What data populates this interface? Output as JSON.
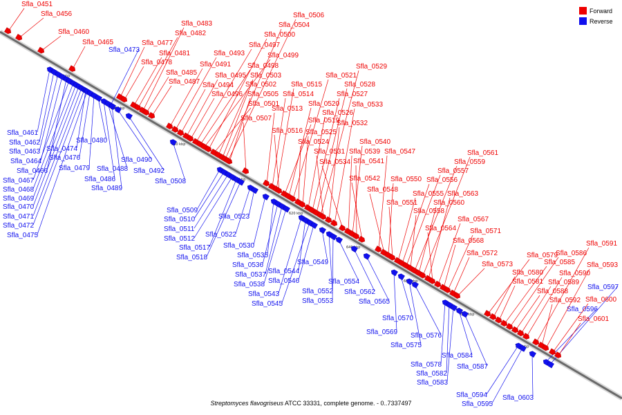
{
  "legend": {
    "forward": {
      "label": "Forward",
      "color": "#ee0000"
    },
    "reverse": {
      "label": "Reverse",
      "color": "#1010ee"
    }
  },
  "caption": {
    "species": "Streptomyces flavogriseus",
    "rest": " ATCC 33331, complete genome. - 0..7337497"
  },
  "ticks": [
    "540 kbp",
    "560 kbp",
    "580 kbp",
    "600 kbp",
    "620 kbp",
    "640 kbp",
    "660 kbp",
    "680 kbp",
    "700 kbp"
  ],
  "forward_genes": [
    "Sfla_0451",
    "Sfla_0456",
    "Sfla_0460",
    "Sfla_0465",
    "Sfla_0477",
    "Sfla_0478",
    "Sfla_0481",
    "Sfla_0482",
    "Sfla_0483",
    "Sfla_0485",
    "Sfla_0487",
    "Sfla_0491",
    "Sfla_0493",
    "Sfla_0494",
    "Sfla_0495",
    "Sfla_0496",
    "Sfla_0497",
    "Sfla_0498",
    "Sfla_0499",
    "Sfla_0500",
    "Sfla_0501",
    "Sfla_0502",
    "Sfla_0503",
    "Sfla_0504",
    "Sfla_0505",
    "Sfla_0506",
    "Sfla_0507",
    "Sfla_0513",
    "Sfla_0514",
    "Sfla_0515",
    "Sfla_0516",
    "Sfla_0519",
    "Sfla_0520",
    "Sfla_0521",
    "Sfla_0524",
    "Sfla_0525",
    "Sfla_0526",
    "Sfla_0527",
    "Sfla_0528",
    "Sfla_0529",
    "Sfla_0531",
    "Sfla_0532",
    "Sfla_0533",
    "Sfla_0534",
    "Sfla_0539",
    "Sfla_0540",
    "Sfla_0541",
    "Sfla_0542",
    "Sfla_0547",
    "Sfla_0548",
    "Sfla_0550",
    "Sfla_0551",
    "Sfla_0555",
    "Sfla_0556",
    "Sfla_0557",
    "Sfla_0558",
    "Sfla_0559",
    "Sfla_0560",
    "Sfla_0561",
    "Sfla_0563",
    "Sfla_0564",
    "Sfla_0567",
    "Sfla_0568",
    "Sfla_0571",
    "Sfla_0572",
    "Sfla_0573",
    "Sfla_0579",
    "Sfla_0580",
    "Sfla_0581",
    "Sfla_0585",
    "Sfla_0586",
    "Sfla_0588",
    "Sfla_0589",
    "Sfla_0590",
    "Sfla_0591",
    "Sfla_0592",
    "Sfla_0593",
    "Sfla_0600",
    "Sfla_0601"
  ],
  "reverse_genes": [
    "Sfla_0461",
    "Sfla_0462",
    "Sfla_0463",
    "Sfla_0464",
    "Sfla_0466",
    "Sfla_0467",
    "Sfla_0468",
    "Sfla_0469",
    "Sfla_0470",
    "Sfla_0471",
    "Sfla_0472",
    "Sfla_0473",
    "Sfla_0474",
    "Sfla_0475",
    "Sfla_0476",
    "Sfla_0479",
    "Sfla_0480",
    "Sfla_0486",
    "Sfla_0488",
    "Sfla_0489",
    "Sfla_0490",
    "Sfla_0492",
    "Sfla_0508",
    "Sfla_0509",
    "Sfla_0510",
    "Sfla_0511",
    "Sfla_0512",
    "Sfla_0517",
    "Sfla_0518",
    "Sfla_0522",
    "Sfla_0523",
    "Sfla_0530",
    "Sfla_0535",
    "Sfla_0536",
    "Sfla_0537",
    "Sfla_0538",
    "Sfla_0543",
    "Sfla_0544",
    "Sfla_0545",
    "Sfla_0546",
    "Sfla_0549",
    "Sfla_0552",
    "Sfla_0553",
    "Sfla_0554",
    "Sfla_0562",
    "Sfla_0565",
    "Sfla_0569",
    "Sfla_0570",
    "Sfla_0575",
    "Sfla_0576",
    "Sfla_0578",
    "Sfla_0582",
    "Sfla_0583",
    "Sfla_0584",
    "Sfla_0587",
    "Sfla_0594",
    "Sfla_0595",
    "Sfla_0596",
    "Sfla_0597",
    "Sfla_0603"
  ]
}
